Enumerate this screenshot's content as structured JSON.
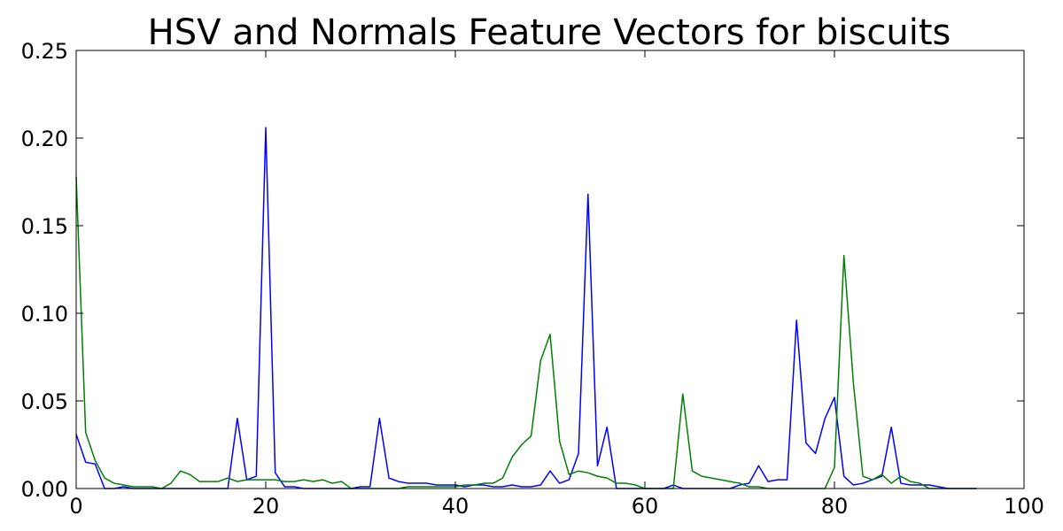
{
  "chart_data": {
    "type": "line",
    "title": "HSV and Normals Feature Vectors for biscuits",
    "xlabel": "",
    "ylabel": "",
    "xlim": [
      0,
      100
    ],
    "ylim": [
      0,
      0.25
    ],
    "grid": false,
    "x_ticks": [
      0,
      20,
      40,
      60,
      80,
      100
    ],
    "x_tick_labels": [
      "0",
      "20",
      "40",
      "60",
      "80",
      "100"
    ],
    "y_ticks": [
      0,
      0.05,
      0.1,
      0.15,
      0.2,
      0.25
    ],
    "y_tick_labels": [
      "0.00",
      "0.05",
      "0.10",
      "0.15",
      "0.20",
      "0.25"
    ],
    "series": [
      {
        "color": "#0000ff",
        "points": [
          [
            0,
            0.031
          ],
          [
            1,
            0.015
          ],
          [
            2,
            0.014
          ],
          [
            3,
            0.0
          ],
          [
            4,
            0.0
          ],
          [
            5,
            0.001
          ],
          [
            6,
            0.0
          ],
          [
            7,
            0.0
          ],
          [
            8,
            0.0
          ],
          [
            9,
            0.0
          ],
          [
            10,
            0.0
          ],
          [
            11,
            0.0
          ],
          [
            12,
            0.0
          ],
          [
            13,
            0.0
          ],
          [
            14,
            0.0
          ],
          [
            15,
            0.0
          ],
          [
            16,
            0.0
          ],
          [
            17,
            0.04
          ],
          [
            18,
            0.005
          ],
          [
            19,
            0.007
          ],
          [
            20,
            0.206
          ],
          [
            21,
            0.009
          ],
          [
            22,
            0.001
          ],
          [
            23,
            0.001
          ],
          [
            24,
            0.0
          ],
          [
            25,
            0.0
          ],
          [
            26,
            0.0
          ],
          [
            27,
            0.0
          ],
          [
            28,
            0.0
          ],
          [
            29,
            0.0
          ],
          [
            30,
            0.001
          ],
          [
            31,
            0.001
          ],
          [
            32,
            0.04
          ],
          [
            33,
            0.006
          ],
          [
            34,
            0.004
          ],
          [
            35,
            0.003
          ],
          [
            36,
            0.003
          ],
          [
            37,
            0.003
          ],
          [
            38,
            0.002
          ],
          [
            39,
            0.002
          ],
          [
            40,
            0.002
          ],
          [
            41,
            0.001
          ],
          [
            42,
            0.002
          ],
          [
            43,
            0.002
          ],
          [
            44,
            0.001
          ],
          [
            45,
            0.001
          ],
          [
            46,
            0.002
          ],
          [
            47,
            0.001
          ],
          [
            48,
            0.001
          ],
          [
            49,
            0.002
          ],
          [
            50,
            0.01
          ],
          [
            51,
            0.003
          ],
          [
            52,
            0.005
          ],
          [
            53,
            0.02
          ],
          [
            54,
            0.168
          ],
          [
            55,
            0.013
          ],
          [
            56,
            0.035
          ],
          [
            57,
            0.0
          ],
          [
            58,
            0.0
          ],
          [
            59,
            0.0
          ],
          [
            60,
            0.0
          ],
          [
            61,
            0.0
          ],
          [
            62,
            0.0
          ],
          [
            63,
            0.002
          ],
          [
            64,
            0.0
          ],
          [
            65,
            0.0
          ],
          [
            66,
            0.0
          ],
          [
            67,
            0.0
          ],
          [
            68,
            0.0
          ],
          [
            69,
            0.0
          ],
          [
            70,
            0.002
          ],
          [
            71,
            0.003
          ],
          [
            72,
            0.013
          ],
          [
            73,
            0.004
          ],
          [
            74,
            0.005
          ],
          [
            75,
            0.005
          ],
          [
            76,
            0.096
          ],
          [
            77,
            0.026
          ],
          [
            78,
            0.02
          ],
          [
            79,
            0.04
          ],
          [
            80,
            0.052
          ],
          [
            81,
            0.007
          ],
          [
            82,
            0.002
          ],
          [
            83,
            0.003
          ],
          [
            84,
            0.005
          ],
          [
            85,
            0.007
          ],
          [
            86,
            0.035
          ],
          [
            87,
            0.003
          ],
          [
            88,
            0.002
          ],
          [
            89,
            0.002
          ],
          [
            90,
            0.002
          ],
          [
            91,
            0.001
          ],
          [
            92,
            0.0
          ],
          [
            93,
            0.0
          ],
          [
            94,
            0.0
          ],
          [
            95,
            0.0
          ]
        ]
      },
      {
        "color": "#008000",
        "points": [
          [
            0,
            0.178
          ],
          [
            1,
            0.032
          ],
          [
            2,
            0.016
          ],
          [
            3,
            0.006
          ],
          [
            4,
            0.003
          ],
          [
            5,
            0.002
          ],
          [
            6,
            0.001
          ],
          [
            7,
            0.001
          ],
          [
            8,
            0.001
          ],
          [
            9,
            0.0
          ],
          [
            10,
            0.003
          ],
          [
            11,
            0.01
          ],
          [
            12,
            0.008
          ],
          [
            13,
            0.004
          ],
          [
            14,
            0.004
          ],
          [
            15,
            0.004
          ],
          [
            16,
            0.006
          ],
          [
            17,
            0.004
          ],
          [
            18,
            0.005
          ],
          [
            19,
            0.005
          ],
          [
            20,
            0.005
          ],
          [
            21,
            0.005
          ],
          [
            22,
            0.004
          ],
          [
            23,
            0.004
          ],
          [
            24,
            0.005
          ],
          [
            25,
            0.004
          ],
          [
            26,
            0.005
          ],
          [
            27,
            0.003
          ],
          [
            28,
            0.004
          ],
          [
            29,
            0.0
          ],
          [
            30,
            0.0
          ],
          [
            31,
            0.0
          ],
          [
            32,
            0.0
          ],
          [
            33,
            0.0
          ],
          [
            34,
            0.0
          ],
          [
            35,
            0.001
          ],
          [
            36,
            0.001
          ],
          [
            37,
            0.001
          ],
          [
            38,
            0.001
          ],
          [
            39,
            0.001
          ],
          [
            40,
            0.001
          ],
          [
            41,
            0.002
          ],
          [
            42,
            0.002
          ],
          [
            43,
            0.003
          ],
          [
            44,
            0.003
          ],
          [
            45,
            0.006
          ],
          [
            46,
            0.018
          ],
          [
            47,
            0.025
          ],
          [
            48,
            0.03
          ],
          [
            49,
            0.073
          ],
          [
            50,
            0.088
          ],
          [
            51,
            0.027
          ],
          [
            52,
            0.008
          ],
          [
            53,
            0.01
          ],
          [
            54,
            0.009
          ],
          [
            55,
            0.007
          ],
          [
            56,
            0.006
          ],
          [
            57,
            0.003
          ],
          [
            58,
            0.003
          ],
          [
            59,
            0.002
          ],
          [
            60,
            0.0
          ],
          [
            61,
            0.0
          ],
          [
            62,
            0.0
          ],
          [
            63,
            0.0
          ],
          [
            64,
            0.054
          ],
          [
            65,
            0.01
          ],
          [
            66,
            0.007
          ],
          [
            67,
            0.006
          ],
          [
            68,
            0.005
          ],
          [
            69,
            0.004
          ],
          [
            70,
            0.003
          ],
          [
            71,
            0.001
          ],
          [
            72,
            0.001
          ],
          [
            73,
            0.0
          ],
          [
            74,
            0.0
          ],
          [
            75,
            0.0
          ],
          [
            76,
            0.0
          ],
          [
            77,
            0.0
          ],
          [
            78,
            0.0
          ],
          [
            79,
            0.0
          ],
          [
            80,
            0.012
          ],
          [
            81,
            0.133
          ],
          [
            82,
            0.06
          ],
          [
            83,
            0.007
          ],
          [
            84,
            0.005
          ],
          [
            85,
            0.008
          ],
          [
            86,
            0.003
          ],
          [
            87,
            0.007
          ],
          [
            88,
            0.004
          ],
          [
            89,
            0.003
          ],
          [
            90,
            0.0
          ],
          [
            91,
            0.0
          ],
          [
            92,
            0.0
          ],
          [
            93,
            0.0
          ],
          [
            94,
            0.0
          ],
          [
            95,
            0.0
          ]
        ]
      }
    ]
  }
}
